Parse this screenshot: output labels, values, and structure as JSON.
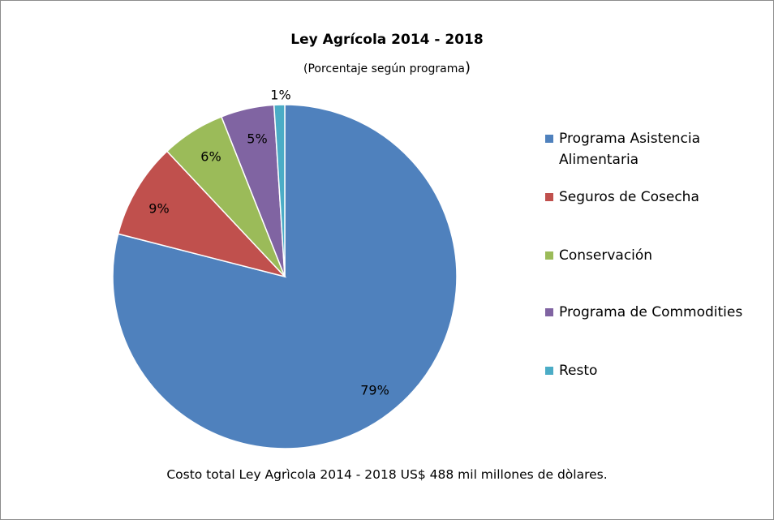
{
  "chart_data": {
    "type": "pie",
    "title": "Ley Agrícola 2014 - 2018",
    "subtitle": "(Porcentaje según programa",
    "subtitle_close": ")",
    "slices": [
      {
        "label": "Programa Asistencia Alimentaria",
        "value": 79,
        "data_label": "79%",
        "color": "#4f81bd"
      },
      {
        "label": "Seguros de Cosecha",
        "value": 9,
        "data_label": "9%",
        "color": "#c0504d"
      },
      {
        "label": "Conservación",
        "value": 6,
        "data_label": "6%",
        "color": "#9bbb59"
      },
      {
        "label": "Programa de Commodities",
        "value": 5,
        "data_label": "5%",
        "color": "#8064a2"
      },
      {
        "label": "Resto",
        "value": 1,
        "data_label": "1%",
        "color": "#4bacc6"
      }
    ],
    "start_angle": "12 o'clock",
    "direction": "clockwise",
    "legend_position": "right",
    "footnote": "Costo total Ley Agrìcola 2014 - 2018 US$ 488 mil millones de dòlares."
  }
}
